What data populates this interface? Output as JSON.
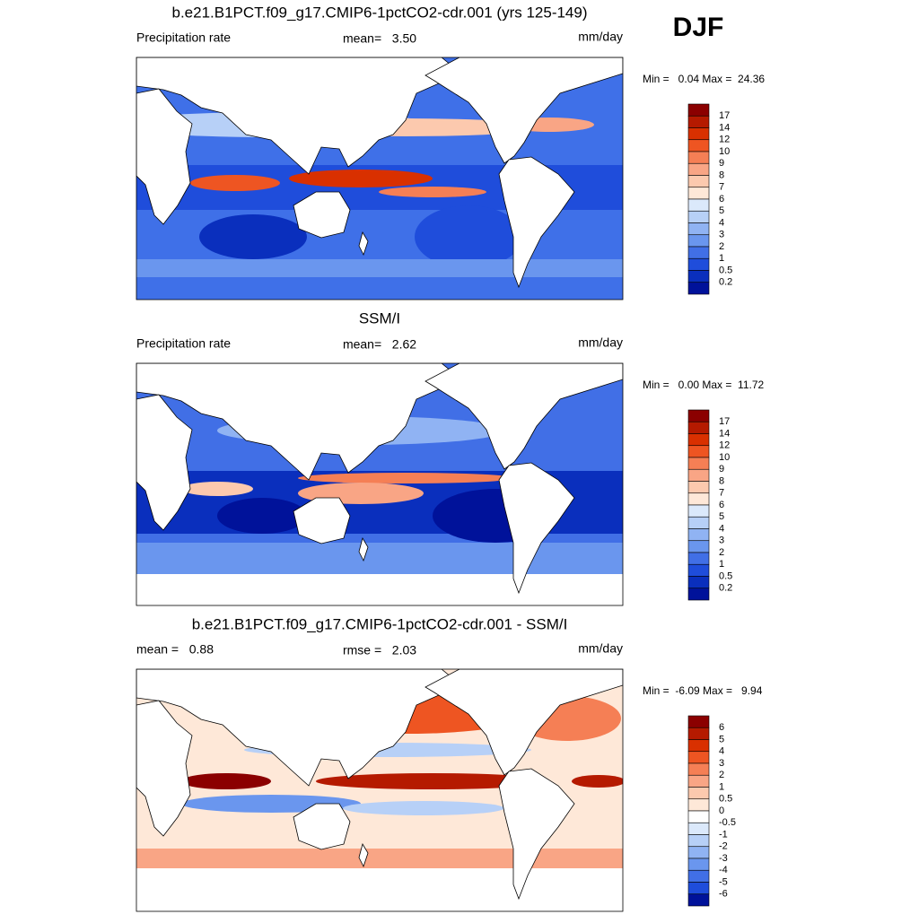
{
  "season": "DJF",
  "panels": [
    {
      "title": "b.e21.B1PCT.f09_g17.CMIP6-1pctCO2-cdr.001 (yrs 125-149)",
      "left_label": "Precipitation rate",
      "center_label": "mean=   3.50",
      "right_label": "mm/day",
      "minmax": "Min =   0.04 Max =  24.36",
      "colorbar": {
        "labels": [
          17,
          14,
          12,
          10,
          9,
          8,
          7,
          6,
          5,
          4,
          3,
          2,
          1,
          0.5,
          0.2
        ],
        "colors": [
          "#8b0000",
          "#b51a00",
          "#d93000",
          "#ee5522",
          "#f57f55",
          "#f9a585",
          "#fcc9ae",
          "#fee8d8",
          "#dbe9fb",
          "#b7d0f7",
          "#90b3f3",
          "#6a96ee",
          "#416fe6",
          "#1f4ddb",
          "#0a2fbd",
          "#00129a"
        ]
      }
    },
    {
      "title": "SSM/I",
      "left_label": "Precipitation rate",
      "center_label": "mean=   2.62",
      "right_label": "mm/day",
      "minmax": "Min =   0.00 Max =  11.72",
      "colorbar": {
        "labels": [
          17,
          14,
          12,
          10,
          9,
          8,
          7,
          6,
          5,
          4,
          3,
          2,
          1,
          0.5,
          0.2
        ],
        "colors": [
          "#8b0000",
          "#b51a00",
          "#d93000",
          "#ee5522",
          "#f57f55",
          "#f9a585",
          "#fcc9ae",
          "#fee8d8",
          "#dbe9fb",
          "#b7d0f7",
          "#90b3f3",
          "#6a96ee",
          "#416fe6",
          "#1f4ddb",
          "#0a2fbd",
          "#00129a"
        ]
      }
    },
    {
      "title": "b.e21.B1PCT.f09_g17.CMIP6-1pctCO2-cdr.001 - SSM/I",
      "left_label": "mean =   0.88",
      "center_label": "rmse =   2.03",
      "right_label": "mm/day",
      "minmax": "Min =  -6.09 Max =   9.94",
      "colorbar": {
        "labels": [
          6,
          5,
          4,
          3,
          2,
          1,
          0.5,
          0,
          -0.5,
          -1,
          -2,
          -3,
          -4,
          -5,
          -6
        ],
        "colors": [
          "#8b0000",
          "#b51a00",
          "#d93000",
          "#ee5522",
          "#f57f55",
          "#f9a585",
          "#fcc9ae",
          "#fee8d8",
          "#ffffff",
          "#dbe9fb",
          "#b7d0f7",
          "#90b3f3",
          "#6a96ee",
          "#416fe6",
          "#1f4ddb",
          "#00129a"
        ]
      }
    }
  ]
}
